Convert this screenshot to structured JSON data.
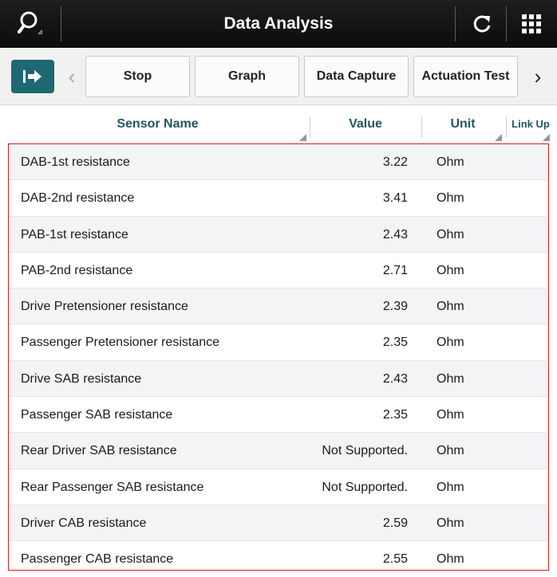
{
  "titlebar": {
    "title": "Data Analysis",
    "icons": [
      "search-icon",
      "refresh-icon",
      "grid-menu-icon"
    ]
  },
  "toolbar": {
    "exit_icon": "exit-icon",
    "prev_arrow": "‹",
    "next_arrow": "›",
    "buttons": [
      "Stop",
      "Graph",
      "Data Capture",
      "Actuation Test"
    ]
  },
  "table": {
    "headers": {
      "sensor_name": "Sensor Name",
      "value": "Value",
      "unit": "Unit",
      "link_up": "Link Up"
    },
    "rows": [
      {
        "name": "DAB-1st resistance",
        "value": "3.22",
        "unit": "Ohm"
      },
      {
        "name": "DAB-2nd resistance",
        "value": "3.41",
        "unit": "Ohm"
      },
      {
        "name": "PAB-1st resistance",
        "value": "2.43",
        "unit": "Ohm"
      },
      {
        "name": "PAB-2nd resistance",
        "value": "2.71",
        "unit": "Ohm"
      },
      {
        "name": "Drive Pretensioner resistance",
        "value": "2.39",
        "unit": "Ohm"
      },
      {
        "name": "Passenger Pretensioner resistance",
        "value": "2.35",
        "unit": "Ohm"
      },
      {
        "name": "Drive SAB resistance",
        "value": "2.43",
        "unit": "Ohm"
      },
      {
        "name": "Passenger SAB resistance",
        "value": "2.35",
        "unit": "Ohm"
      },
      {
        "name": "Rear Driver SAB resistance",
        "value": "Not Supported.",
        "unit": "Ohm"
      },
      {
        "name": "Rear Passenger SAB resistance",
        "value": "Not Supported.",
        "unit": "Ohm"
      },
      {
        "name": "Driver CAB resistance",
        "value": "2.59",
        "unit": "Ohm"
      },
      {
        "name": "Passenger CAB resistance",
        "value": "2.55",
        "unit": "Ohm"
      }
    ]
  },
  "colors": {
    "titlebar_bg": "#111111",
    "accent": "#1d6873",
    "header_text": "#1f5660",
    "selection_border": "#e0161d"
  }
}
